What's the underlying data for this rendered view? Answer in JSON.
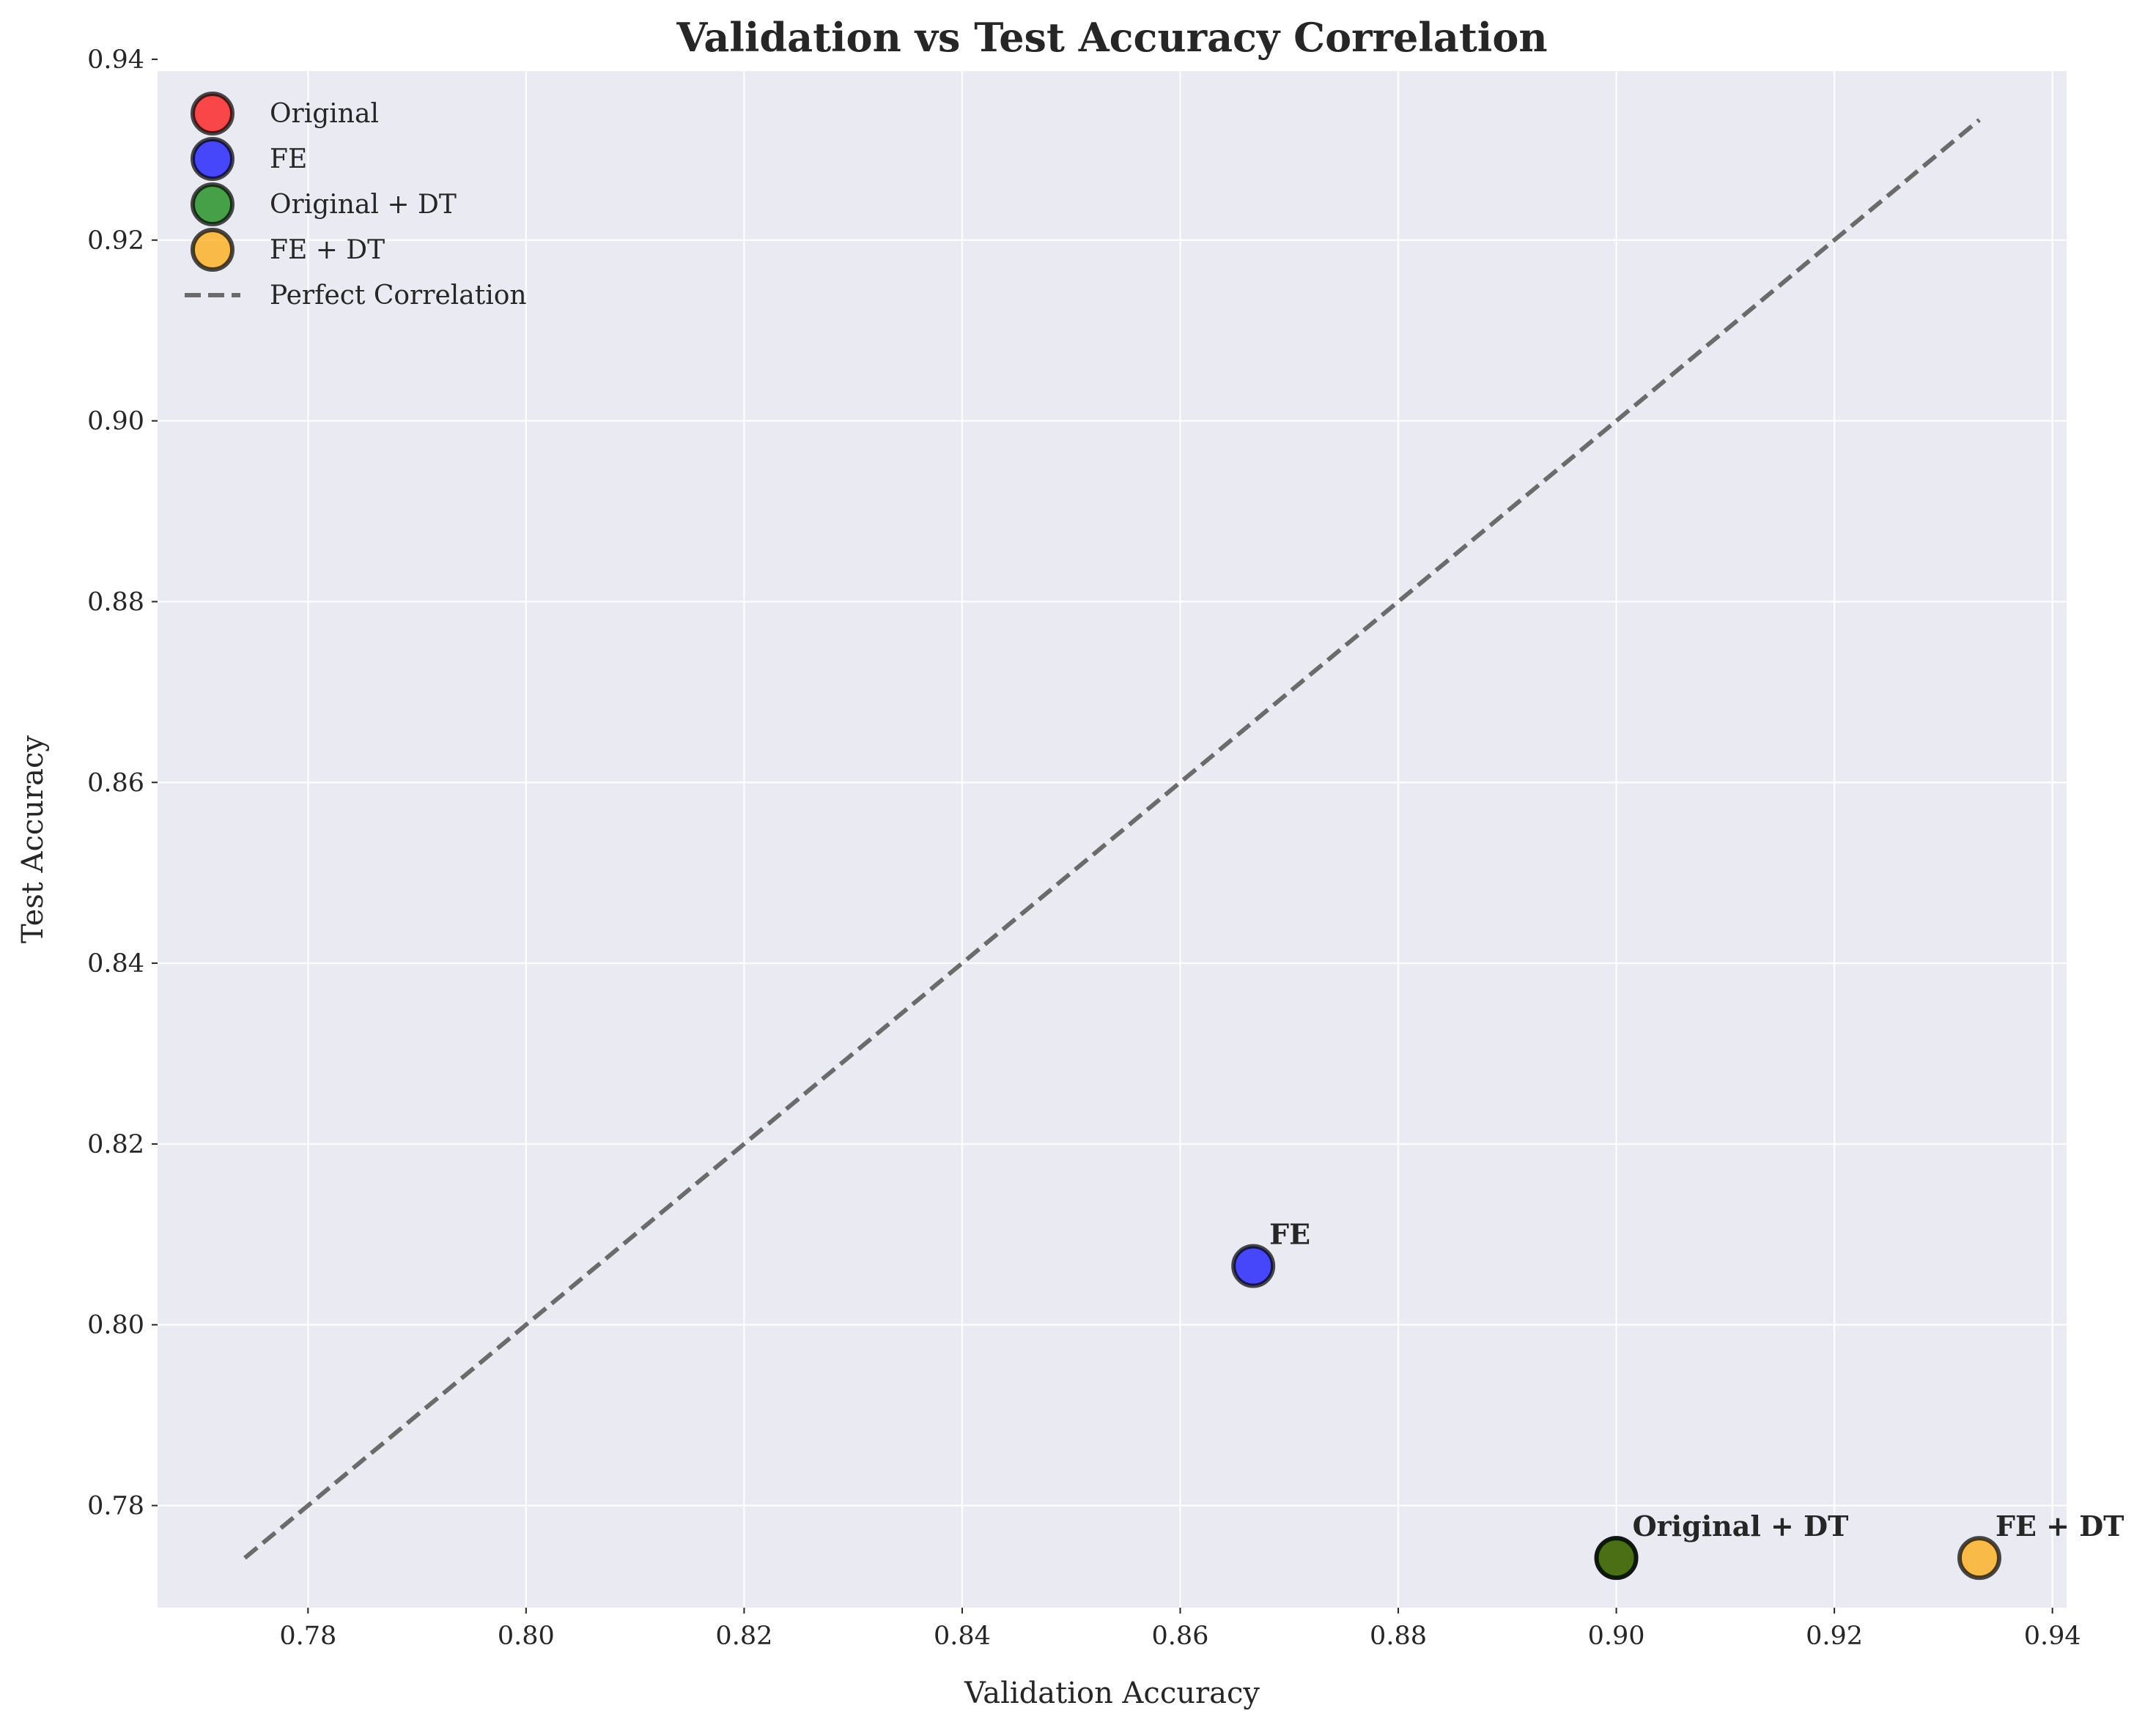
{
  "chart_data": {
    "type": "scatter",
    "title": "Validation vs Test Accuracy Correlation",
    "xlabel": "Validation Accuracy",
    "ylabel": "Test Accuracy",
    "xlim": [
      0.7662,
      0.9413
    ],
    "ylim": [
      0.7687,
      0.9387
    ],
    "xticks": [
      "0.78",
      "0.80",
      "0.82",
      "0.84",
      "0.86",
      "0.88",
      "0.90",
      "0.92",
      "0.94"
    ],
    "xtick_values": [
      0.78,
      0.8,
      0.82,
      0.84,
      0.86,
      0.88,
      0.9,
      0.92,
      0.94
    ],
    "yticks": [
      "0.78",
      "0.80",
      "0.82",
      "0.84",
      "0.86",
      "0.88",
      "0.90",
      "0.92",
      "0.94"
    ],
    "ytick_values": [
      0.78,
      0.8,
      0.82,
      0.84,
      0.86,
      0.88,
      0.9,
      0.92,
      0.94
    ],
    "grid": true,
    "legend_position": "top-left",
    "series": [
      {
        "name": "Original",
        "color": "#ff0000",
        "points": [
          {
            "x": 0.9,
            "y": 0.7742
          }
        ],
        "label": ""
      },
      {
        "name": "FE",
        "color": "#0000ff",
        "points": [
          {
            "x": 0.8667,
            "y": 0.8065
          }
        ],
        "label": "FE"
      },
      {
        "name": "Original + DT",
        "color": "#008000",
        "points": [
          {
            "x": 0.9,
            "y": 0.7742
          }
        ],
        "label": "Original + DT"
      },
      {
        "name": "FE + DT",
        "color": "#ffa500",
        "points": [
          {
            "x": 0.9333,
            "y": 0.7742
          }
        ],
        "label": "FE + DT"
      }
    ],
    "reference_line": {
      "name": "Perfect Correlation",
      "color": "#555555",
      "style": "dashed",
      "x": [
        0.7742,
        0.9333
      ],
      "y": [
        0.7742,
        0.9333
      ]
    },
    "colors": {
      "plot_background": "#eaeaf2",
      "grid": "#ffffff",
      "text": "#262626",
      "marker_edge": "#000000"
    }
  }
}
